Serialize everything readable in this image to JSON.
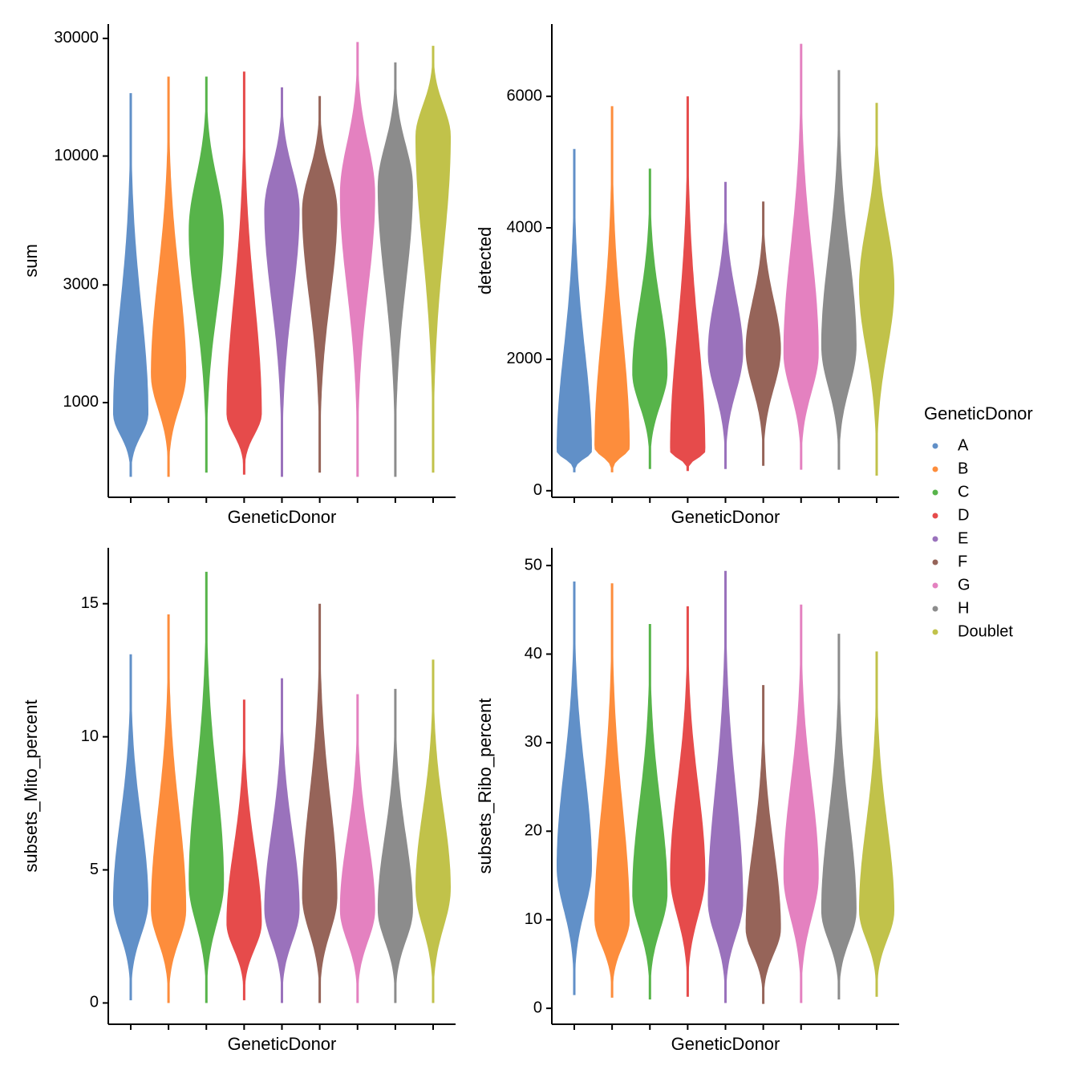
{
  "legend": {
    "title": "GeneticDonor",
    "items": [
      {
        "name": "A",
        "color": "#6190c8"
      },
      {
        "name": "B",
        "color": "#fd8d3c"
      },
      {
        "name": "C",
        "color": "#57b44a"
      },
      {
        "name": "D",
        "color": "#e64b4b"
      },
      {
        "name": "E",
        "color": "#9a72bc"
      },
      {
        "name": "F",
        "color": "#966459"
      },
      {
        "name": "G",
        "color": "#e481c0"
      },
      {
        "name": "H",
        "color": "#8c8c8c"
      },
      {
        "name": "Doublet",
        "color": "#c1c24a"
      }
    ]
  },
  "chart_data": [
    {
      "type": "violin",
      "y_label": "sum",
      "x_label": "GeneticDonor",
      "log_scale": true,
      "categories": [
        null,
        null,
        null,
        null,
        null,
        null,
        null,
        null,
        null
      ],
      "min": [
        500,
        500,
        520,
        510,
        500,
        520,
        500,
        500,
        520
      ],
      "peak": [
        900,
        1300,
        5000,
        900,
        6000,
        6000,
        7000,
        7500,
        12000
      ],
      "max": [
        18000,
        21000,
        21000,
        22000,
        19000,
        17500,
        29000,
        24000,
        28000
      ],
      "ylim": [
        413,
        34300
      ],
      "yticks": [
        1000,
        3000,
        10000,
        30000
      ]
    },
    {
      "type": "violin",
      "y_label": "detected",
      "x_label": "GeneticDonor",
      "log_scale": false,
      "categories": [
        null,
        null,
        null,
        null,
        null,
        null,
        null,
        null,
        null
      ],
      "min": [
        280,
        280,
        330,
        300,
        330,
        380,
        320,
        320,
        230
      ],
      "peak": [
        600,
        650,
        1800,
        600,
        2100,
        2150,
        2100,
        2200,
        3100
      ],
      "max": [
        5200,
        5850,
        4900,
        6000,
        4700,
        4400,
        6800,
        6400,
        5900
      ],
      "ylim": [
        -100,
        7100
      ],
      "yticks": [
        0,
        2000,
        4000,
        6000
      ]
    },
    {
      "type": "violin",
      "y_label": "subsets_Mito_percent",
      "x_label": "GeneticDonor",
      "log_scale": false,
      "categories": [
        null,
        null,
        null,
        null,
        null,
        null,
        null,
        null,
        null
      ],
      "min": [
        0.1,
        0,
        0,
        0.1,
        0,
        0,
        0,
        0,
        0
      ],
      "peak": [
        3.8,
        3.5,
        4.5,
        3.0,
        3.5,
        4.0,
        3.5,
        3.5,
        4.3
      ],
      "max": [
        13.1,
        14.6,
        16.2,
        11.4,
        12.2,
        15.0,
        11.6,
        11.8,
        12.9
      ],
      "ylim": [
        -0.8,
        17.1
      ],
      "yticks": [
        0,
        5,
        10,
        15
      ]
    },
    {
      "type": "violin",
      "y_label": "subsets_Ribo_percent",
      "x_label": "GeneticDonor",
      "log_scale": false,
      "categories": [
        null,
        null,
        null,
        null,
        null,
        null,
        null,
        null,
        null
      ],
      "min": [
        1.5,
        1.2,
        1,
        1.3,
        0.6,
        0.5,
        0.6,
        1,
        1.3
      ],
      "peak": [
        16,
        10,
        13,
        15,
        12,
        9,
        15,
        11,
        11
      ],
      "max": [
        48.2,
        48,
        43.4,
        45.4,
        49.4,
        36.5,
        45.6,
        42.3,
        40.3
      ],
      "ylim": [
        -1.8,
        52
      ],
      "yticks": [
        0,
        10,
        20,
        30,
        40,
        50
      ]
    }
  ]
}
